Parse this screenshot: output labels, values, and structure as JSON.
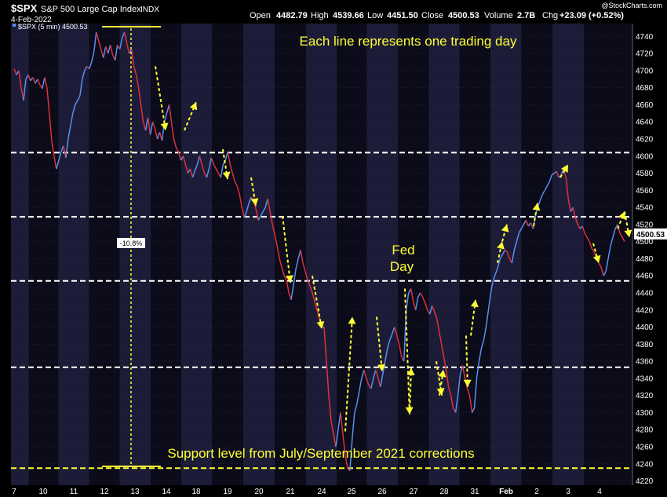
{
  "header": {
    "symbol": "$SPX",
    "name": "S&P 500 Large Cap Index",
    "exchange": "INDX",
    "date": "4-Feb-2022",
    "open_label": "Open",
    "open": "4482.79",
    "high_label": "High",
    "high": "4539.66",
    "low_label": "Low",
    "low": "4451.50",
    "close_label": "Close",
    "close": "4500.53",
    "volume_label": "Volume",
    "volume": "2.7B",
    "chg_label": "Chg",
    "chg": "+23.09 (+0.52%)",
    "watermark": "@StockCharts.com",
    "legend": "$SPX (5 min) 4500.53"
  },
  "colors": {
    "background": "#000000",
    "panel_light": "#1c1c38",
    "panel_dark": "#0b0b1a",
    "grid": "#3a3a4a",
    "price_up": "#5b8ff0",
    "price_down": "#e0303a",
    "annotation": "#ffff33",
    "support_line": "#ffffff",
    "last_price_box": "#ffffff"
  },
  "chart_data": {
    "type": "line",
    "interval": "5 min",
    "ylim": [
      4215,
      4755
    ],
    "y_ticks": [
      4220,
      4240,
      4260,
      4280,
      4300,
      4320,
      4340,
      4360,
      4380,
      4400,
      4420,
      4440,
      4460,
      4480,
      4500,
      4520,
      4540,
      4560,
      4580,
      4600,
      4620,
      4640,
      4660,
      4680,
      4700,
      4720,
      4740
    ],
    "x_labels": [
      "7",
      "10",
      "11",
      "12",
      "13",
      "14",
      "18",
      "19",
      "20",
      "21",
      "24",
      "25",
      "26",
      "27",
      "28",
      "31",
      "Feb",
      "2",
      "3",
      "4"
    ],
    "last_price": "4500.53",
    "series": [
      {
        "values": [
          4702,
          4695,
          4700,
          4680,
          4665,
          4690,
          4695,
          4688,
          4692,
          4685,
          4690,
          4683,
          4679,
          4692,
          4680,
          4650,
          4618,
          4600,
          4585,
          4595,
          4605,
          4612,
          4598,
          4620,
          4635,
          4650,
          4660,
          4665,
          4670,
          4690,
          4700,
          4705,
          4702,
          4710,
          4722,
          4745,
          4735,
          4725,
          4715,
          4728,
          4720,
          4730,
          4718,
          4712,
          4730,
          4725,
          4738,
          4745,
          4732,
          4720,
          4725,
          4705,
          4695,
          4680,
          4660,
          4640,
          4630,
          4645,
          4625,
          4640,
          4632,
          4620,
          4628,
          4618,
          4640,
          4650,
          4660,
          4640,
          4620,
          4610,
          4605,
          4595,
          4600,
          4590,
          4580,
          4585,
          4575,
          4583,
          4590,
          4600,
          4590,
          4580,
          4575,
          4585,
          4598,
          4590,
          4585,
          4580,
          4575,
          4590,
          4595,
          4605,
          4590,
          4580,
          4570,
          4565,
          4555,
          4540,
          4528,
          4535,
          4545,
          4552,
          4548,
          4538,
          4525,
          4530,
          4535,
          4540,
          4550,
          4535,
          4520,
          4508,
          4495,
          4480,
          4470,
          4460,
          4455,
          4440,
          4432,
          4450,
          4468,
          4480,
          4490,
          4475,
          4465,
          4455,
          4448,
          4440,
          4430,
          4420,
          4410,
          4400,
          4400,
          4360,
          4320,
          4290,
          4275,
          4260,
          4280,
          4300,
          4275,
          4250,
          4235,
          4232,
          4270,
          4300,
          4310,
          4325,
          4340,
          4350,
          4340,
          4332,
          4328,
          4340,
          4350,
          4340,
          4330,
          4345,
          4360,
          4375,
          4385,
          4392,
          4400,
          4390,
          4380,
          4365,
          4360,
          4420,
          4440,
          4445,
          4430,
          4420,
          4435,
          4440,
          4435,
          4428,
          4420,
          4415,
          4425,
          4418,
          4410,
          4395,
          4380,
          4365,
          4350,
          4330,
          4320,
          4305,
          4300,
          4320,
          4345,
          4355,
          4340,
          4328,
          4320,
          4300,
          4305,
          4340,
          4360,
          4375,
          4385,
          4400,
          4420,
          4440,
          4455,
          4462,
          4470,
          4480,
          4485,
          4490,
          4488,
          4480,
          4475,
          4490,
          4500,
          4510,
          4515,
          4520,
          4525,
          4518,
          4522,
          4515,
          4530,
          4540,
          4548,
          4555,
          4560,
          4565,
          4570,
          4578,
          4580,
          4582,
          4575,
          4578,
          4585,
          4575,
          4550,
          4535,
          4540,
          4528,
          4520,
          4515,
          4518,
          4510,
          4505,
          4500,
          4492,
          4488,
          4480,
          4475,
          4470,
          4460,
          4465,
          4480,
          4495,
          4505,
          4515,
          4520,
          4510,
          4505,
          4500
        ]
      }
    ],
    "horizontal_levels": [
      4235,
      4353,
      4454,
      4529,
      4604
    ],
    "annotations": [
      {
        "text": "Each line represents one trading day"
      },
      {
        "text": "Fed"
      },
      {
        "text": "Day"
      },
      {
        "text": "Support level from July/September 2021 corrections"
      },
      {
        "text": "-10.8%"
      }
    ]
  }
}
